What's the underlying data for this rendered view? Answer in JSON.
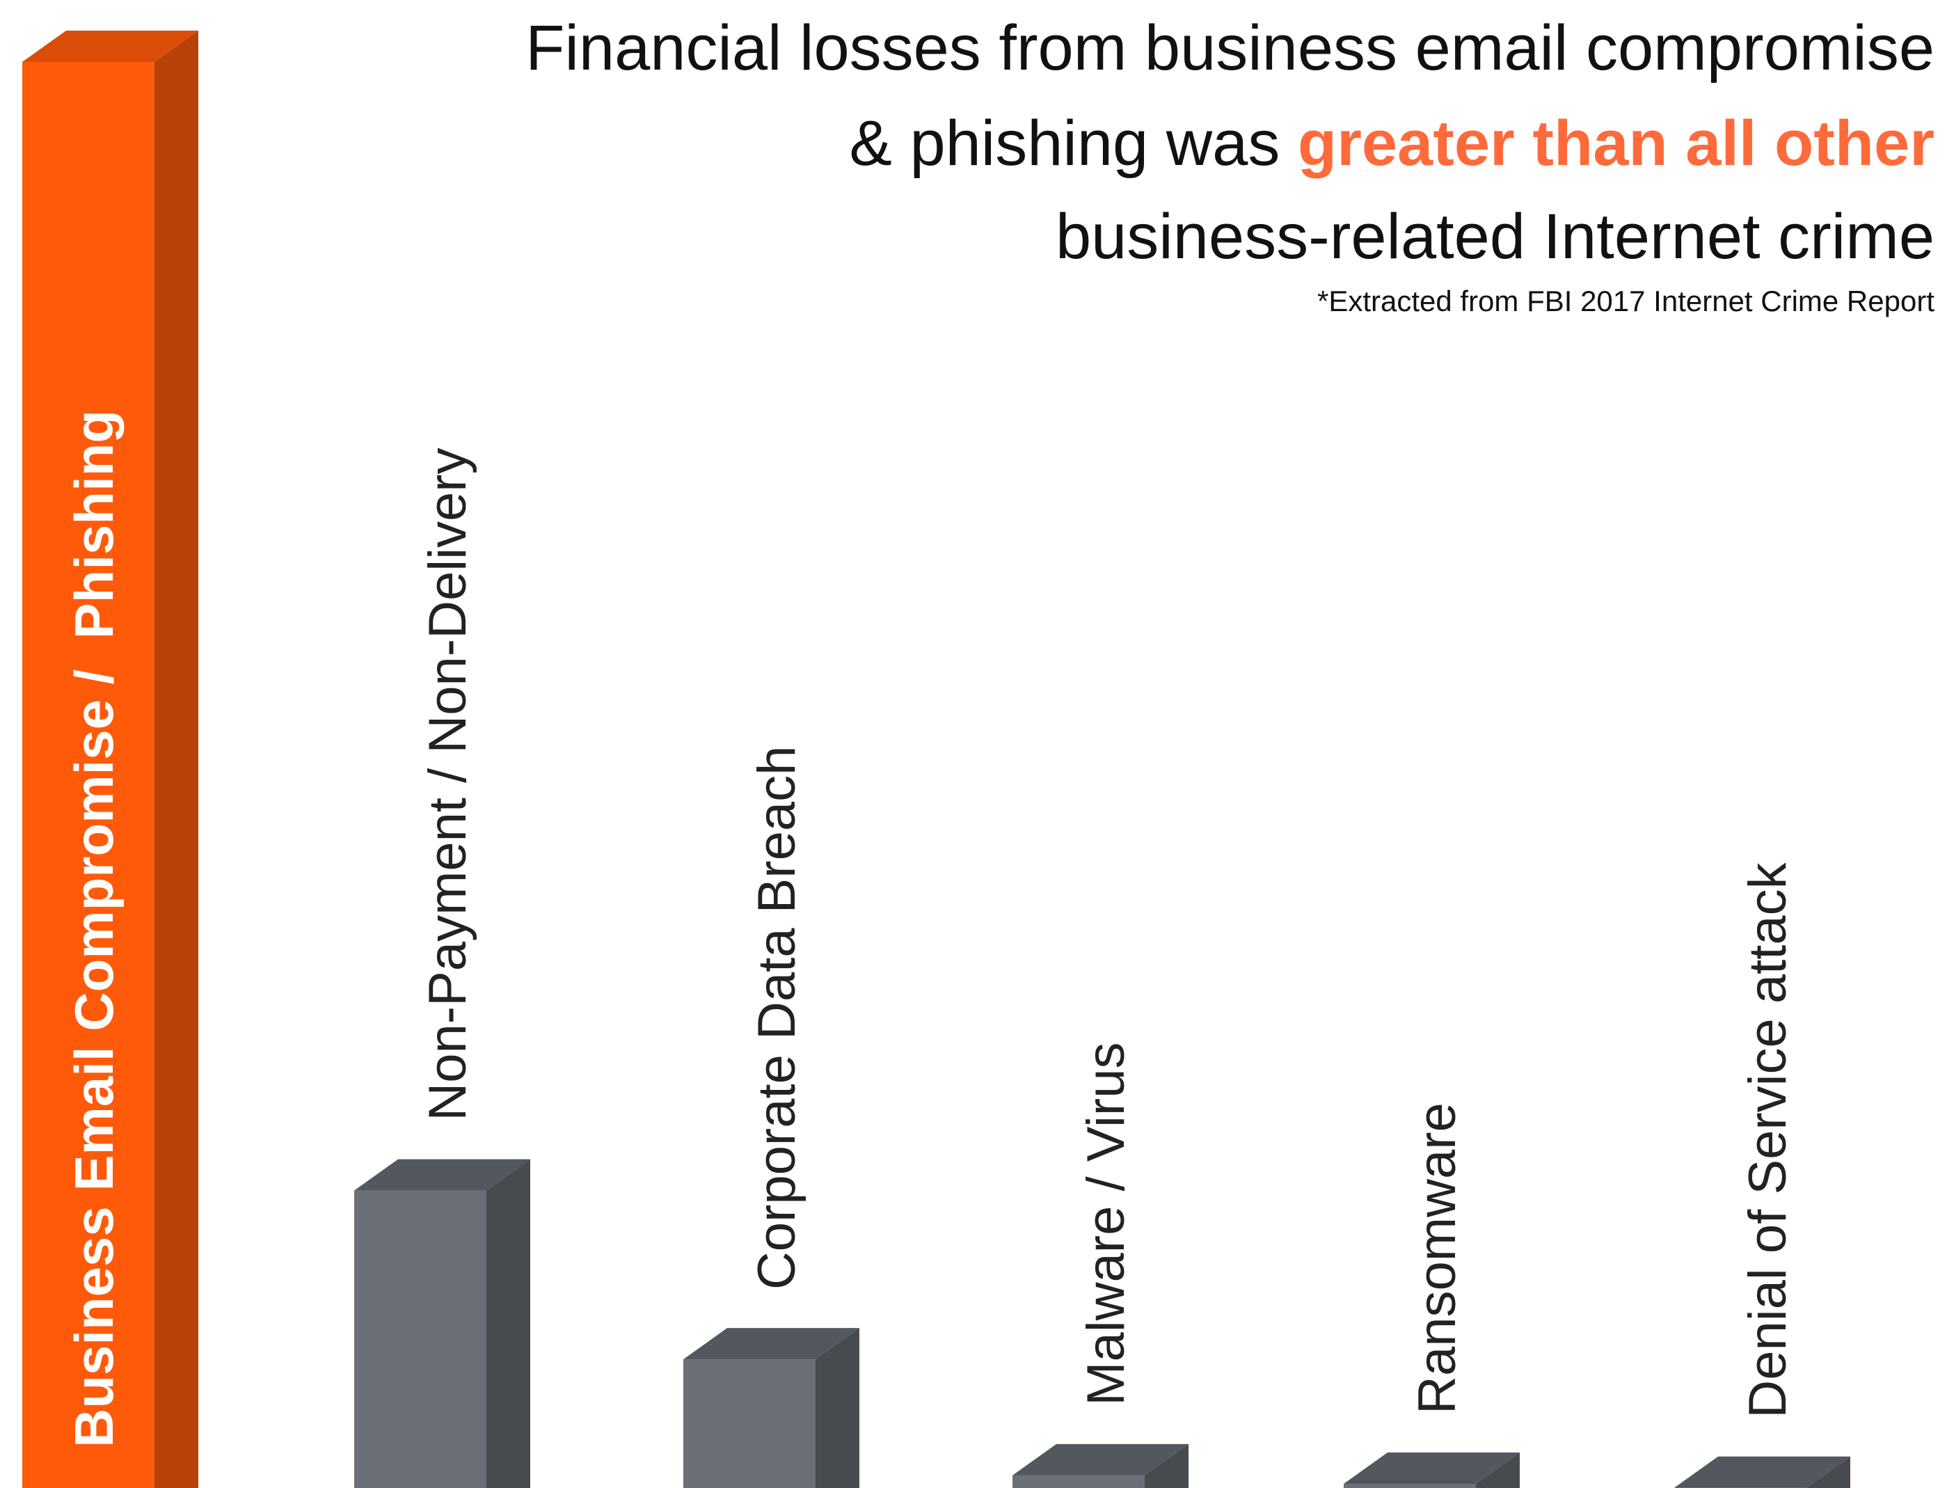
{
  "chart_data": {
    "type": "bar3d",
    "title": {
      "line1": "Financial losses from business email compromise",
      "line2": "& phishing was ",
      "highlight": "greater than all other",
      "line3": "business-related Internet crime"
    },
    "subtitle": "*Extracted from FBI 2017 Internet Crime Report",
    "categories": [
      "Business Email Compromise /  Phishing",
      "Non-Payment / Non-Delivery",
      "Corporate Data Breach",
      "Malware / Virus",
      "Ransomware",
      "Denial of Service attack"
    ],
    "values": [
      676,
      141,
      61,
      6,
      2,
      0.1
    ],
    "colors": [
      "#ff5a0a",
      "#6b7078",
      "#6b7078",
      "#6b7078",
      "#6b7078",
      "#6b7078"
    ]
  }
}
